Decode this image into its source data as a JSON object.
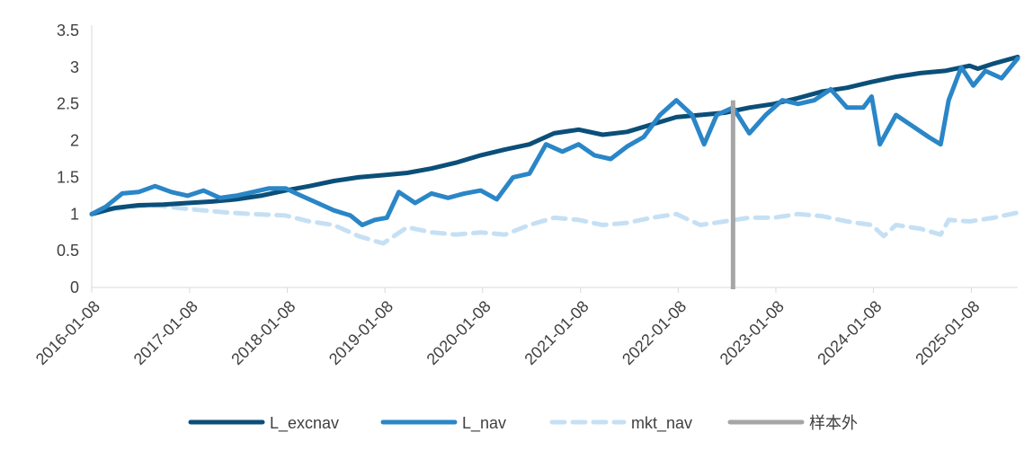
{
  "chart_data": {
    "type": "line",
    "grid": false,
    "legend_position": "bottom",
    "ylim": [
      0,
      3.5
    ],
    "yticks": [
      "0",
      "0.5",
      "1",
      "1.5",
      "2",
      "2.5",
      "3",
      "3.5"
    ],
    "xlim": [
      "2016-01-08",
      "2025-06-30"
    ],
    "xticks": [
      "2016-01-08",
      "2017-01-08",
      "2018-01-08",
      "2019-01-08",
      "2020-01-08",
      "2021-01-08",
      "2022-01-08",
      "2023-01-08",
      "2024-01-08",
      "2025-01-08"
    ],
    "out_of_sample_start": "2022-08-01",
    "series": [
      {
        "name": "L_excnav",
        "color": "#0b4f79",
        "style": "solid",
        "points": [
          [
            "2016-01-08",
            1.0
          ],
          [
            "2016-04-01",
            1.08
          ],
          [
            "2016-07-01",
            1.12
          ],
          [
            "2016-10-01",
            1.13
          ],
          [
            "2017-01-01",
            1.15
          ],
          [
            "2017-04-01",
            1.17
          ],
          [
            "2017-07-01",
            1.2
          ],
          [
            "2017-10-01",
            1.25
          ],
          [
            "2018-01-01",
            1.32
          ],
          [
            "2018-04-01",
            1.38
          ],
          [
            "2018-07-01",
            1.45
          ],
          [
            "2018-10-01",
            1.5
          ],
          [
            "2019-01-01",
            1.53
          ],
          [
            "2019-04-01",
            1.56
          ],
          [
            "2019-07-01",
            1.62
          ],
          [
            "2019-10-01",
            1.7
          ],
          [
            "2020-01-01",
            1.8
          ],
          [
            "2020-04-01",
            1.88
          ],
          [
            "2020-07-01",
            1.95
          ],
          [
            "2020-10-01",
            2.1
          ],
          [
            "2021-01-01",
            2.15
          ],
          [
            "2021-04-01",
            2.08
          ],
          [
            "2021-07-01",
            2.12
          ],
          [
            "2021-10-01",
            2.22
          ],
          [
            "2022-01-01",
            2.32
          ],
          [
            "2022-04-01",
            2.35
          ],
          [
            "2022-07-01",
            2.38
          ],
          [
            "2022-10-01",
            2.45
          ],
          [
            "2023-01-01",
            2.5
          ],
          [
            "2023-04-01",
            2.58
          ],
          [
            "2023-07-01",
            2.67
          ],
          [
            "2023-10-01",
            2.72
          ],
          [
            "2024-01-01",
            2.8
          ],
          [
            "2024-04-01",
            2.87
          ],
          [
            "2024-07-01",
            2.92
          ],
          [
            "2024-10-01",
            2.95
          ],
          [
            "2025-01-01",
            3.02
          ],
          [
            "2025-02-01",
            2.98
          ],
          [
            "2025-04-01",
            3.05
          ],
          [
            "2025-06-30",
            3.14
          ]
        ]
      },
      {
        "name": "L_nav",
        "color": "#2a86c7",
        "style": "solid",
        "points": [
          [
            "2016-01-08",
            1.0
          ],
          [
            "2016-03-01",
            1.1
          ],
          [
            "2016-05-01",
            1.28
          ],
          [
            "2016-07-01",
            1.3
          ],
          [
            "2016-09-01",
            1.38
          ],
          [
            "2016-11-01",
            1.3
          ],
          [
            "2017-01-01",
            1.25
          ],
          [
            "2017-03-01",
            1.32
          ],
          [
            "2017-05-01",
            1.22
          ],
          [
            "2017-07-01",
            1.25
          ],
          [
            "2017-09-01",
            1.3
          ],
          [
            "2017-11-01",
            1.35
          ],
          [
            "2018-01-01",
            1.35
          ],
          [
            "2018-03-01",
            1.25
          ],
          [
            "2018-05-01",
            1.15
          ],
          [
            "2018-07-01",
            1.05
          ],
          [
            "2018-09-01",
            0.98
          ],
          [
            "2018-10-15",
            0.85
          ],
          [
            "2018-12-01",
            0.92
          ],
          [
            "2019-01-15",
            0.95
          ],
          [
            "2019-03-01",
            1.3
          ],
          [
            "2019-05-01",
            1.15
          ],
          [
            "2019-07-01",
            1.28
          ],
          [
            "2019-09-01",
            1.22
          ],
          [
            "2019-11-01",
            1.28
          ],
          [
            "2020-01-01",
            1.32
          ],
          [
            "2020-03-01",
            1.2
          ],
          [
            "2020-05-01",
            1.5
          ],
          [
            "2020-07-01",
            1.55
          ],
          [
            "2020-09-01",
            1.95
          ],
          [
            "2020-11-01",
            1.85
          ],
          [
            "2021-01-01",
            1.95
          ],
          [
            "2021-03-01",
            1.8
          ],
          [
            "2021-05-01",
            1.75
          ],
          [
            "2021-07-01",
            1.92
          ],
          [
            "2021-09-01",
            2.05
          ],
          [
            "2021-11-01",
            2.35
          ],
          [
            "2022-01-01",
            2.55
          ],
          [
            "2022-03-01",
            2.35
          ],
          [
            "2022-04-15",
            1.95
          ],
          [
            "2022-06-01",
            2.35
          ],
          [
            "2022-08-01",
            2.45
          ],
          [
            "2022-10-01",
            2.1
          ],
          [
            "2022-12-01",
            2.35
          ],
          [
            "2023-02-01",
            2.55
          ],
          [
            "2023-04-01",
            2.5
          ],
          [
            "2023-06-01",
            2.55
          ],
          [
            "2023-08-01",
            2.7
          ],
          [
            "2023-10-01",
            2.45
          ],
          [
            "2023-12-01",
            2.45
          ],
          [
            "2024-01-01",
            2.6
          ],
          [
            "2024-02-01",
            1.95
          ],
          [
            "2024-04-01",
            2.35
          ],
          [
            "2024-06-01",
            2.2
          ],
          [
            "2024-08-01",
            2.05
          ],
          [
            "2024-09-15",
            1.95
          ],
          [
            "2024-10-15",
            2.55
          ],
          [
            "2024-12-01",
            3.0
          ],
          [
            "2025-01-15",
            2.75
          ],
          [
            "2025-03-01",
            2.95
          ],
          [
            "2025-05-01",
            2.85
          ],
          [
            "2025-06-30",
            3.12
          ]
        ]
      },
      {
        "name": "mkt_nav",
        "color": "#c5e0f4",
        "style": "dashed",
        "points": [
          [
            "2016-01-08",
            1.0
          ],
          [
            "2016-03-01",
            1.05
          ],
          [
            "2016-06-01",
            1.1
          ],
          [
            "2016-09-01",
            1.12
          ],
          [
            "2016-12-01",
            1.08
          ],
          [
            "2017-03-01",
            1.05
          ],
          [
            "2017-06-01",
            1.02
          ],
          [
            "2017-09-01",
            1.0
          ],
          [
            "2018-01-01",
            0.98
          ],
          [
            "2018-04-01",
            0.9
          ],
          [
            "2018-07-01",
            0.85
          ],
          [
            "2018-10-01",
            0.7
          ],
          [
            "2019-01-01",
            0.6
          ],
          [
            "2019-04-01",
            0.82
          ],
          [
            "2019-07-01",
            0.75
          ],
          [
            "2019-10-01",
            0.72
          ],
          [
            "2020-01-01",
            0.75
          ],
          [
            "2020-04-01",
            0.72
          ],
          [
            "2020-07-01",
            0.85
          ],
          [
            "2020-10-01",
            0.95
          ],
          [
            "2021-01-01",
            0.92
          ],
          [
            "2021-04-01",
            0.85
          ],
          [
            "2021-07-01",
            0.88
          ],
          [
            "2021-10-01",
            0.95
          ],
          [
            "2022-01-01",
            1.0
          ],
          [
            "2022-04-01",
            0.85
          ],
          [
            "2022-07-01",
            0.9
          ],
          [
            "2022-10-01",
            0.95
          ],
          [
            "2023-01-01",
            0.95
          ],
          [
            "2023-04-01",
            1.0
          ],
          [
            "2023-07-01",
            0.97
          ],
          [
            "2023-10-01",
            0.9
          ],
          [
            "2024-01-01",
            0.85
          ],
          [
            "2024-02-15",
            0.7
          ],
          [
            "2024-04-01",
            0.85
          ],
          [
            "2024-07-01",
            0.8
          ],
          [
            "2024-09-15",
            0.72
          ],
          [
            "2024-10-15",
            0.92
          ],
          [
            "2025-01-01",
            0.9
          ],
          [
            "2025-04-01",
            0.95
          ],
          [
            "2025-06-30",
            1.02
          ]
        ]
      },
      {
        "name": "样本外",
        "color": "#a6a6a6",
        "style": "vertical-marker"
      }
    ]
  }
}
